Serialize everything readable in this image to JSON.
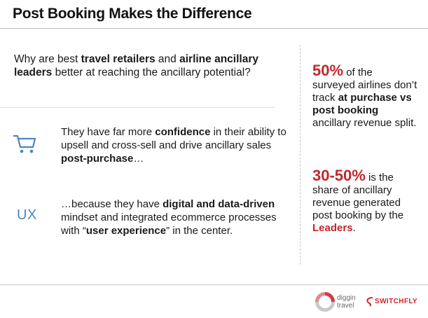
{
  "slide": {
    "title": "Post Booking Makes the Difference",
    "question": {
      "p1": "Why are best ",
      "b1": "travel retailers",
      "p2": " and ",
      "b2": "airline ancillary leaders",
      "p3": " better at reaching the ancillary potential?"
    },
    "point_confidence": {
      "icon": "shopping-cart-icon",
      "p1": "They have far more ",
      "b1": "confidence",
      "p2": " in their ability to upsell and cross-sell and drive ancillary sales ",
      "b2": "post-purchase",
      "p3": "…"
    },
    "point_ux": {
      "icon_label": "UX",
      "p1": "…because they have ",
      "b1": "digital and data-driven",
      "p2": " mindset and integrated ecommerce processes with “",
      "b2": "user experience",
      "p3": "” in the center."
    },
    "stat_tracking": {
      "value": "50%",
      "p1": " of the surveyed airlines don’t track ",
      "b1": "at purchase vs post booking",
      "p2": " ancillary revenue split."
    },
    "stat_revenue": {
      "value": "30-50%",
      "p1": " is the share of ancillary revenue generated post booking by the ",
      "highlight": "Leaders",
      "p2": "."
    },
    "logos": {
      "diggin_line1": "diggin",
      "diggin_line2": "travel",
      "switchfly": "SWITCHFLY"
    },
    "colors": {
      "accent_red": "#c0282d",
      "icon_blue": "#4a86c5"
    }
  }
}
